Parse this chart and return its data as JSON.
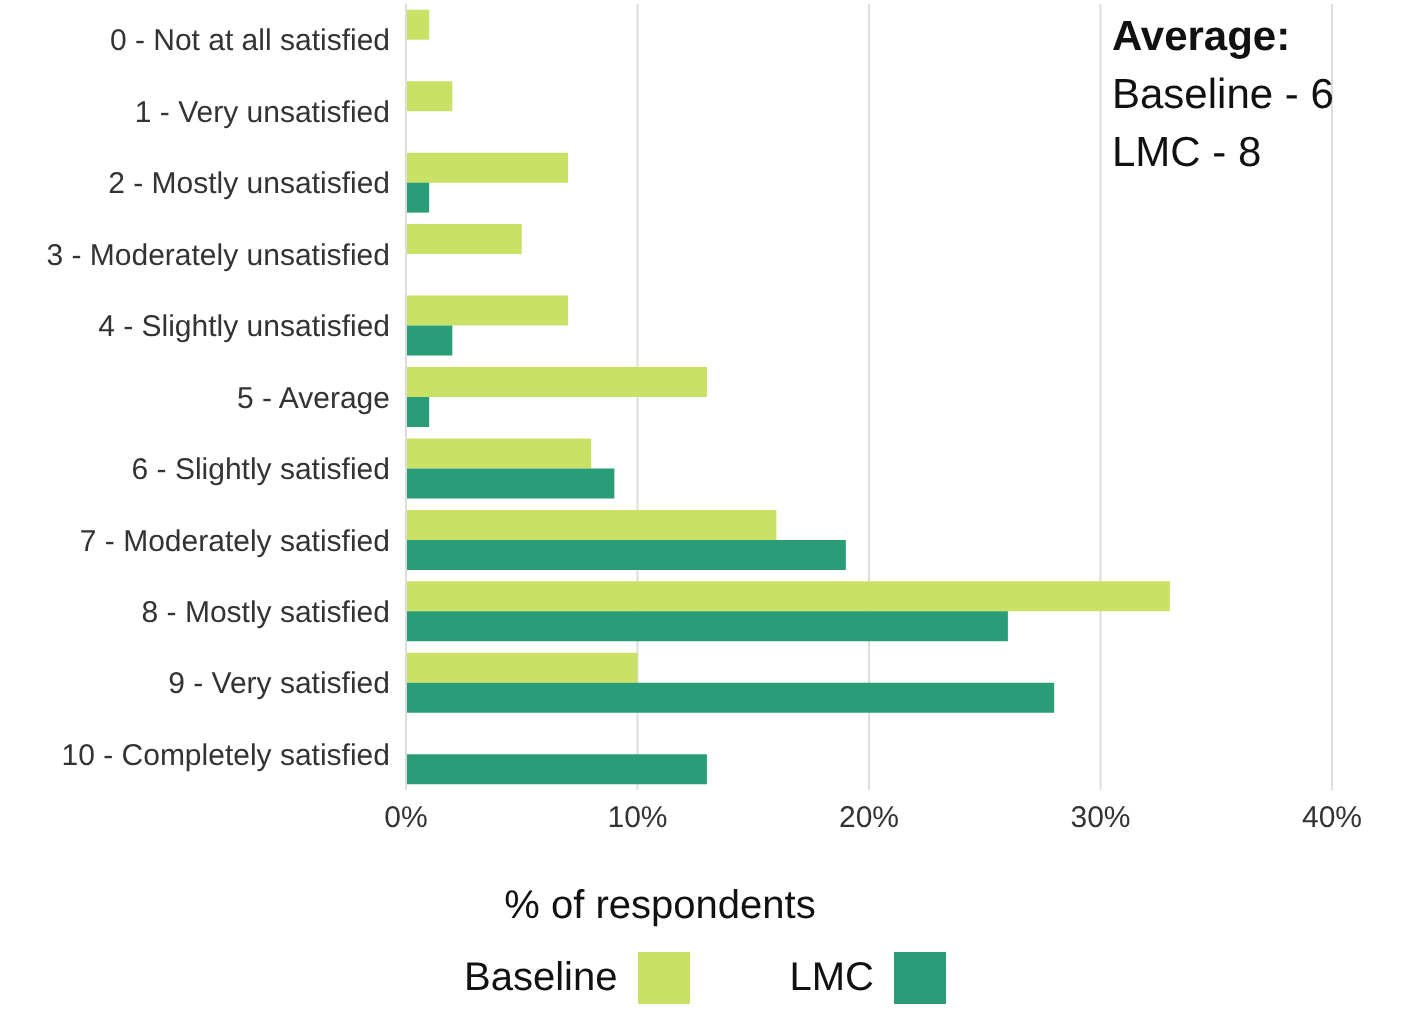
{
  "chart_data": {
    "type": "bar",
    "orientation": "horizontal",
    "categories": [
      "0 - Not at all satisfied",
      "1 - Very unsatisfied",
      "2 - Mostly unsatisfied",
      "3 - Moderately unsatisfied",
      "4 - Slightly unsatisfied",
      "5 - Average",
      "6 - Slightly satisfied",
      "7 - Moderately satisfied",
      "8 - Mostly satisfied",
      "9 - Very satisfied",
      "10 - Completely satisfied"
    ],
    "series": [
      {
        "name": "Baseline",
        "color": "#c9e265",
        "values": [
          1,
          2,
          7,
          5,
          7,
          13,
          8,
          16,
          33,
          10,
          0
        ]
      },
      {
        "name": "LMC",
        "color": "#2a9d78",
        "values": [
          0,
          0,
          1,
          0,
          2,
          1,
          9,
          19,
          26,
          28,
          13
        ]
      }
    ],
    "xlim": [
      0,
      40
    ],
    "xticks": [
      {
        "value": 0,
        "label": "0%"
      },
      {
        "value": 10,
        "label": "10%"
      },
      {
        "value": 20,
        "label": "20%"
      },
      {
        "value": 30,
        "label": "30%"
      },
      {
        "value": 40,
        "label": "40%"
      }
    ],
    "xlabel": "% of respondents",
    "grid": "x",
    "legend": "bottom",
    "annotations": [
      "Average:",
      "Baseline - 6",
      "LMC - 8"
    ]
  }
}
